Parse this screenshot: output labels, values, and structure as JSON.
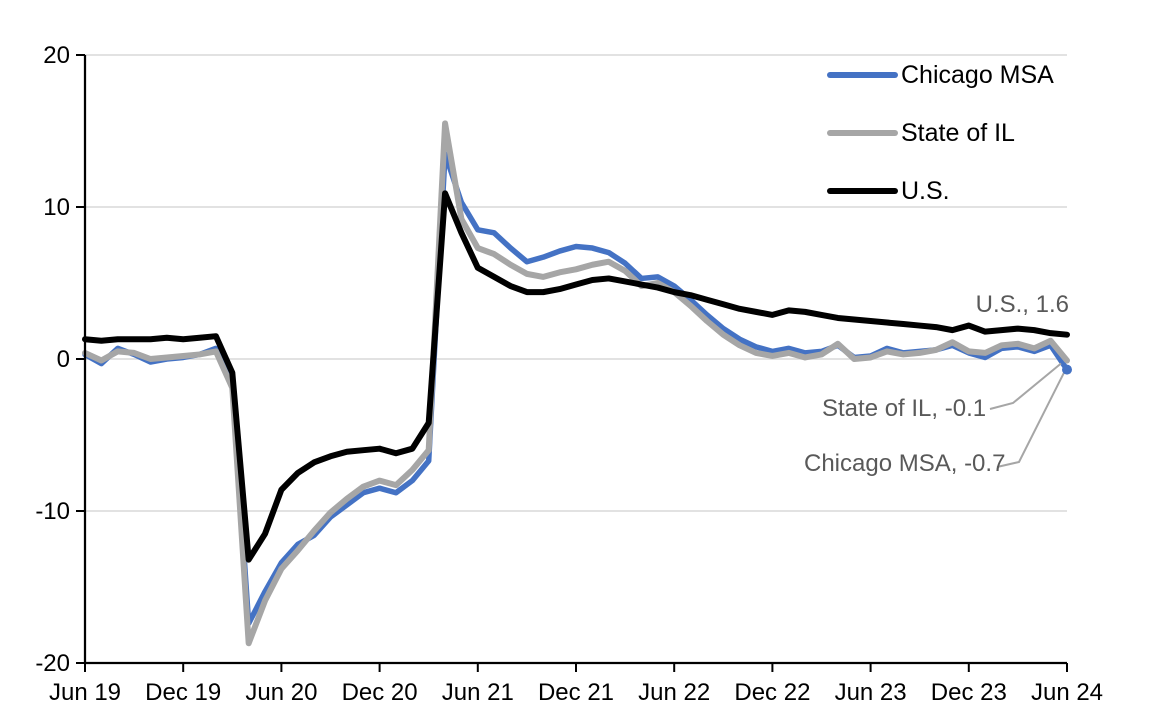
{
  "chart_data": {
    "type": "line",
    "title": "",
    "frequency": "monthly",
    "x_range": [
      "Jun 2019",
      "Jun 2024"
    ],
    "x_tick_labels": [
      "Jun 19",
      "Dec 19",
      "Jun 20",
      "Dec 20",
      "Jun 21",
      "Dec 21",
      "Jun 22",
      "Dec 22",
      "Jun 23",
      "Dec 23",
      "Jun 24"
    ],
    "y_ticks": [
      20,
      10,
      0,
      -10,
      -20
    ],
    "y_tick_labels": [
      "20",
      "10",
      "0",
      "-10",
      "-20"
    ],
    "gridlines_at": [
      20,
      10,
      0,
      -10
    ],
    "ylim": [
      -20,
      20
    ],
    "grid": "horizontal",
    "legend_position": "top-right-inside",
    "series": [
      {
        "name": "Chicago MSA",
        "color": "#4472C4",
        "line_width": 5.5,
        "values": [
          0.3,
          -0.3,
          0.7,
          0.3,
          -0.2,
          0.0,
          0.1,
          0.3,
          0.7,
          -1.6,
          -17.4,
          -15.3,
          -13.4,
          -12.2,
          -11.6,
          -10.4,
          -9.6,
          -8.8,
          -8.5,
          -8.8,
          -8.0,
          -6.7,
          13.5,
          10.3,
          8.5,
          8.3,
          7.3,
          6.4,
          6.7,
          7.1,
          7.4,
          7.3,
          7.0,
          6.3,
          5.3,
          5.4,
          4.8,
          3.9,
          2.9,
          2.0,
          1.3,
          0.8,
          0.5,
          0.7,
          0.4,
          0.5,
          0.9,
          0.1,
          0.2,
          0.7,
          0.4,
          0.5,
          0.6,
          0.9,
          0.4,
          0.1,
          0.7,
          0.8,
          0.5,
          0.9,
          -0.7
        ]
      },
      {
        "name": "State of IL",
        "color": "#A6A6A6",
        "line_width": 6,
        "values": [
          0.4,
          -0.1,
          0.5,
          0.4,
          0.0,
          0.1,
          0.2,
          0.3,
          0.5,
          -1.9,
          -18.7,
          -15.9,
          -13.8,
          -12.6,
          -11.3,
          -10.1,
          -9.2,
          -8.4,
          -8.0,
          -8.3,
          -7.3,
          -6.0,
          15.5,
          9.2,
          7.3,
          6.9,
          6.2,
          5.6,
          5.4,
          5.7,
          5.9,
          6.2,
          6.4,
          5.8,
          4.8,
          5.0,
          4.4,
          3.5,
          2.5,
          1.6,
          0.9,
          0.4,
          0.2,
          0.4,
          0.1,
          0.3,
          1.0,
          0.0,
          0.1,
          0.5,
          0.3,
          0.4,
          0.6,
          1.1,
          0.5,
          0.4,
          0.9,
          1.0,
          0.7,
          1.2,
          -0.1
        ]
      },
      {
        "name": "U.S.",
        "color": "#000000",
        "line_width": 6,
        "values": [
          1.3,
          1.2,
          1.3,
          1.3,
          1.3,
          1.4,
          1.3,
          1.4,
          1.5,
          -0.9,
          -13.2,
          -11.5,
          -8.6,
          -7.5,
          -6.8,
          -6.4,
          -6.1,
          -6.0,
          -5.9,
          -6.2,
          -5.9,
          -4.2,
          10.9,
          8.3,
          6.0,
          5.4,
          4.8,
          4.4,
          4.4,
          4.6,
          4.9,
          5.2,
          5.3,
          5.1,
          4.9,
          4.7,
          4.4,
          4.2,
          3.9,
          3.6,
          3.3,
          3.1,
          2.9,
          3.2,
          3.1,
          2.9,
          2.7,
          2.6,
          2.5,
          2.4,
          2.3,
          2.2,
          2.1,
          1.9,
          2.2,
          1.8,
          1.9,
          2.0,
          1.9,
          1.7,
          1.6
        ]
      }
    ],
    "annotations": [
      {
        "target": "U.S.",
        "text": "U.S., 1.6",
        "value": 1.6
      },
      {
        "target": "State of IL",
        "text": "State of IL, -0.1",
        "value": -0.1
      },
      {
        "target": "Chicago MSA",
        "text": "Chicago MSA, -0.7",
        "value": -0.7
      }
    ]
  },
  "styles": {
    "grid_color": "#D9D9D9",
    "axis_color": "#000000",
    "tick_label_color": "#000000",
    "annotation_color": "#595959",
    "leader_line_color": "#A6A6A6",
    "background": "#FFFFFF"
  }
}
